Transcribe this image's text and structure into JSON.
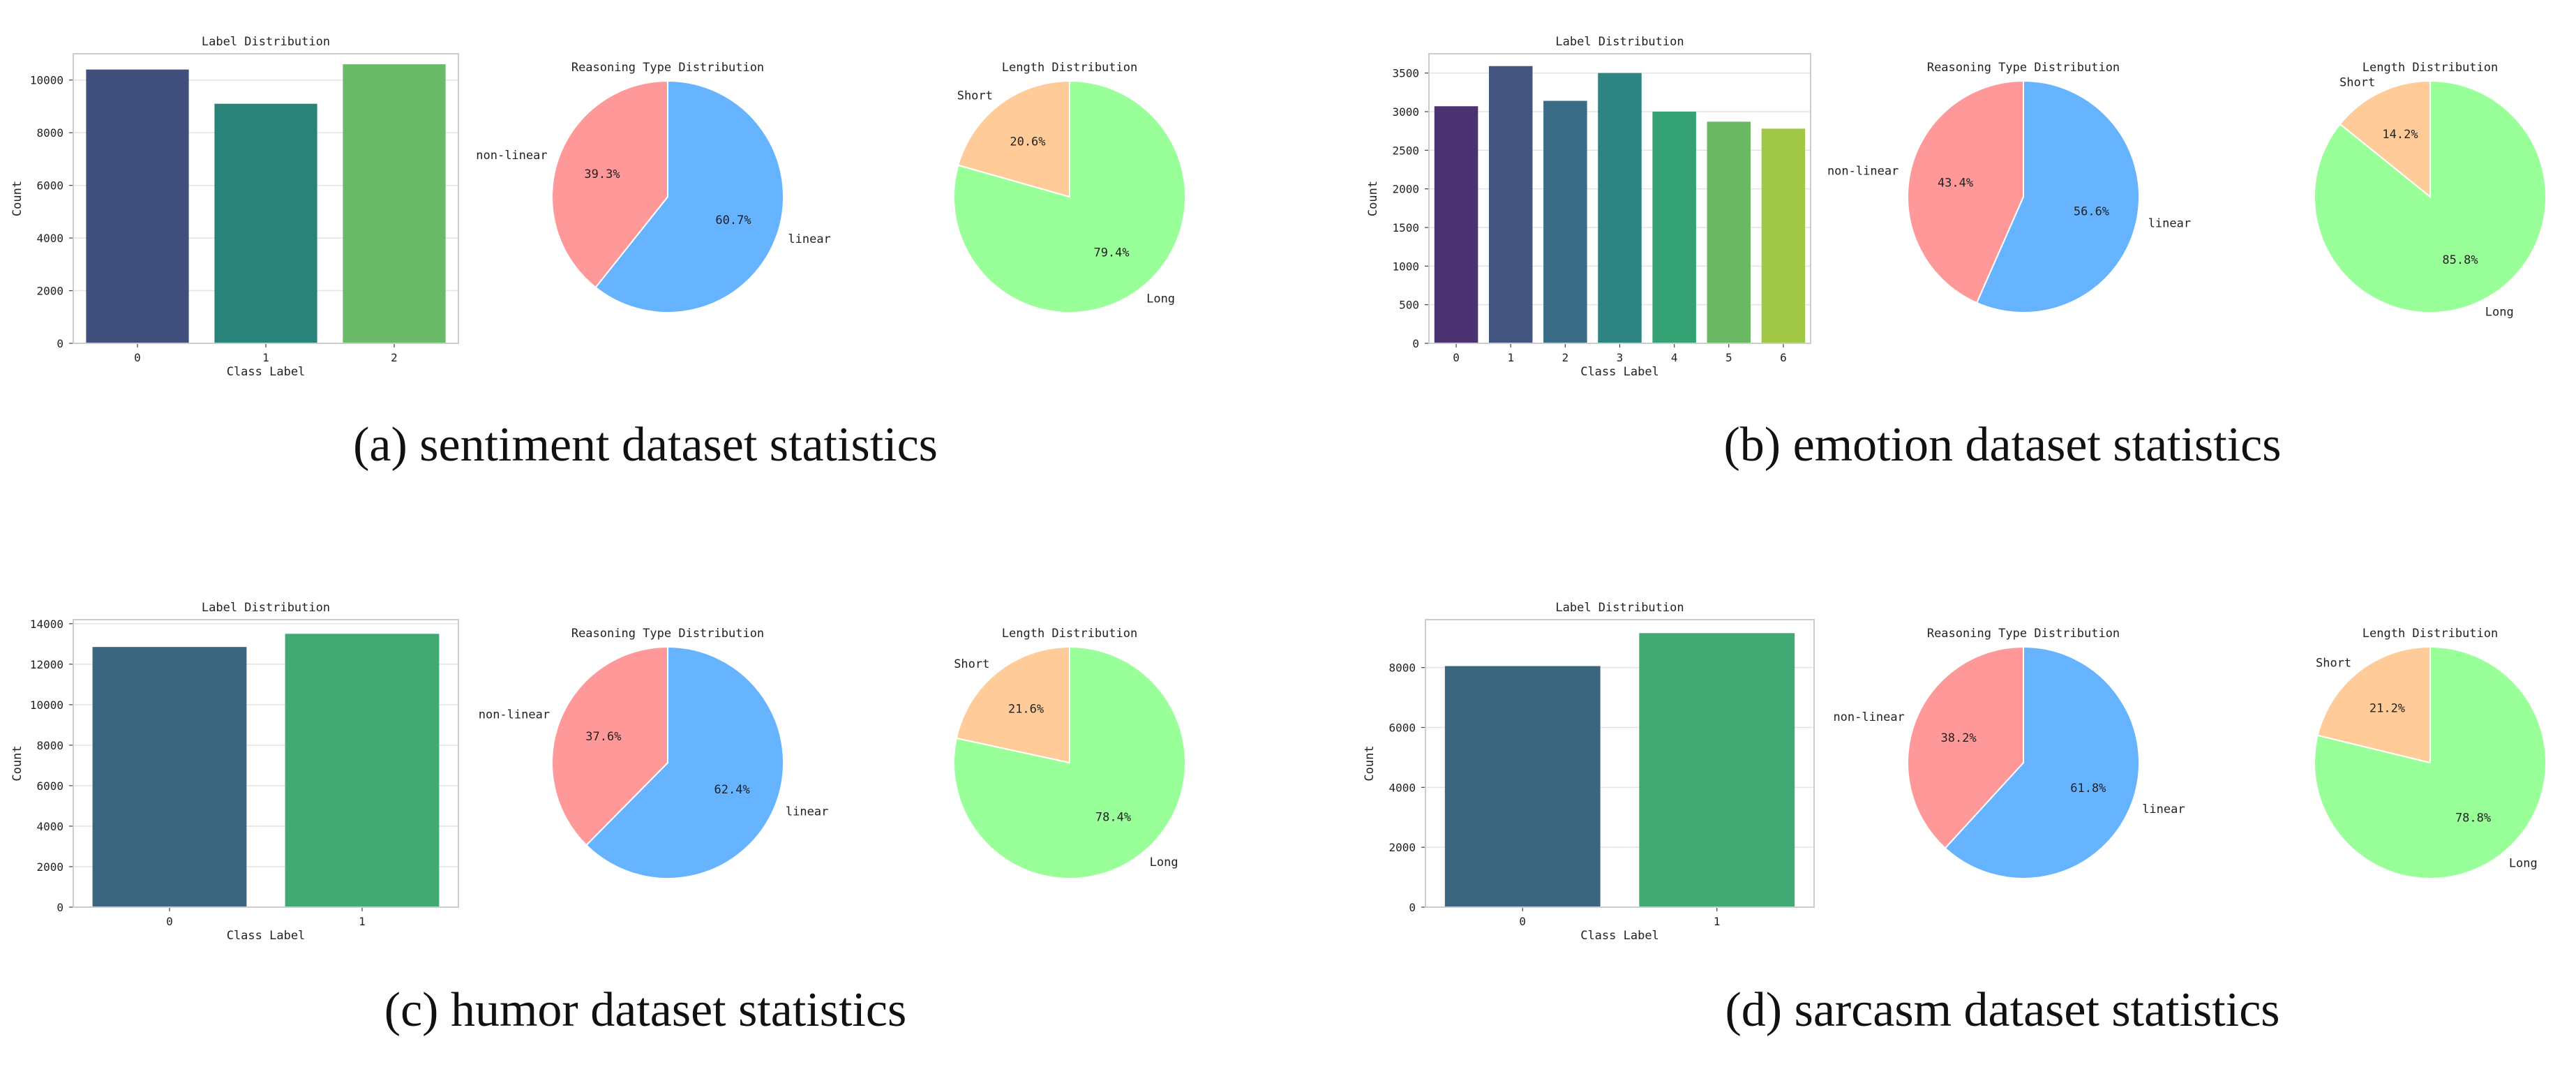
{
  "panels": [
    {
      "caption": "(a) sentiment dataset statistics",
      "bar": {
        "title": "Label Distribution",
        "xlabel": "Class Label",
        "ylabel": "Count",
        "categories": [
          "0",
          "1",
          "2"
        ],
        "values": [
          10400,
          9100,
          10600
        ],
        "ylim": [
          0,
          11000
        ],
        "yticks": [
          0,
          2000,
          4000,
          6000,
          8000,
          10000
        ],
        "colors": [
          "#414f7d",
          "#2a8379",
          "#6aba6a"
        ]
      },
      "reasoning": {
        "title": "Reasoning Type Distribution",
        "slices": [
          {
            "label": "linear",
            "value": 60.7,
            "pct": "60.7%",
            "color": "#66b3ff"
          },
          {
            "label": "non-linear",
            "value": 39.3,
            "pct": "39.3%",
            "color": "#ff9999"
          }
        ]
      },
      "length": {
        "title": "Length Distribution",
        "slices": [
          {
            "label": "Long",
            "value": 79.4,
            "pct": "79.4%",
            "color": "#99ff99"
          },
          {
            "label": "Short",
            "value": 20.6,
            "pct": "20.6%",
            "color": "#ffcc99"
          }
        ]
      }
    },
    {
      "caption": "(b) emotion dataset statistics",
      "bar": {
        "title": "Label Distribution",
        "xlabel": "Class Label",
        "ylabel": "Count",
        "categories": [
          "0",
          "1",
          "2",
          "3",
          "4",
          "5",
          "6"
        ],
        "values": [
          3070,
          3590,
          3140,
          3500,
          3000,
          2870,
          2780
        ],
        "ylim": [
          0,
          3750
        ],
        "yticks": [
          0,
          500,
          1000,
          1500,
          2000,
          2500,
          3000,
          3500
        ],
        "colors": [
          "#4a3370",
          "#43547f",
          "#3a6c88",
          "#2e8481",
          "#35a275",
          "#6ab864",
          "#a1c746"
        ]
      },
      "reasoning": {
        "title": "Reasoning Type Distribution",
        "slices": [
          {
            "label": "linear",
            "value": 56.6,
            "pct": "56.6%",
            "color": "#66b3ff"
          },
          {
            "label": "non-linear",
            "value": 43.4,
            "pct": "43.4%",
            "color": "#ff9999"
          }
        ]
      },
      "length": {
        "title": "Length Distribution",
        "slices": [
          {
            "label": "Long",
            "value": 85.8,
            "pct": "85.8%",
            "color": "#99ff99"
          },
          {
            "label": "Short",
            "value": 14.2,
            "pct": "14.2%",
            "color": "#ffcc99"
          }
        ]
      }
    },
    {
      "caption": "(c) humor dataset statistics",
      "bar": {
        "title": "Label Distribution",
        "xlabel": "Class Label",
        "ylabel": "Count",
        "categories": [
          "0",
          "1"
        ],
        "values": [
          12850,
          13500
        ],
        "ylim": [
          0,
          14200
        ],
        "yticks": [
          0,
          2000,
          4000,
          6000,
          8000,
          10000,
          12000,
          14000
        ],
        "colors": [
          "#3c6580",
          "#42a874"
        ]
      },
      "reasoning": {
        "title": "Reasoning Type Distribution",
        "slices": [
          {
            "label": "linear",
            "value": 62.4,
            "pct": "62.4%",
            "color": "#66b3ff"
          },
          {
            "label": "non-linear",
            "value": 37.6,
            "pct": "37.6%",
            "color": "#ff9999"
          }
        ]
      },
      "length": {
        "title": "Length Distribution",
        "slices": [
          {
            "label": "Long",
            "value": 78.4,
            "pct": "78.4%",
            "color": "#99ff99"
          },
          {
            "label": "Short",
            "value": 21.6,
            "pct": "21.6%",
            "color": "#ffcc99"
          }
        ]
      }
    },
    {
      "caption": "(d) sarcasm dataset statistics",
      "bar": {
        "title": "Label Distribution",
        "xlabel": "Class Label",
        "ylabel": "Count",
        "categories": [
          "0",
          "1"
        ],
        "values": [
          8050,
          9150
        ],
        "ylim": [
          0,
          9600
        ],
        "yticks": [
          0,
          2000,
          4000,
          6000,
          8000
        ],
        "colors": [
          "#3c6580",
          "#42a874"
        ]
      },
      "reasoning": {
        "title": "Reasoning Type Distribution",
        "slices": [
          {
            "label": "linear",
            "value": 61.8,
            "pct": "61.8%",
            "color": "#66b3ff"
          },
          {
            "label": "non-linear",
            "value": 38.2,
            "pct": "38.2%",
            "color": "#ff9999"
          }
        ]
      },
      "length": {
        "title": "Length Distribution",
        "slices": [
          {
            "label": "Long",
            "value": 78.8,
            "pct": "78.8%",
            "color": "#99ff99"
          },
          {
            "label": "Short",
            "value": 21.2,
            "pct": "21.2%",
            "color": "#ffcc99"
          }
        ]
      }
    }
  ],
  "chart_data": [
    {
      "type": "bar",
      "title": "Label Distribution",
      "xlabel": "Class Label",
      "ylabel": "Count",
      "categories": [
        "0",
        "1",
        "2"
      ],
      "values": [
        10400,
        9100,
        10600
      ],
      "ylim": [
        0,
        11000
      ]
    },
    {
      "type": "pie",
      "title": "Reasoning Type Distribution",
      "labels": [
        "linear",
        "non-linear"
      ],
      "values": [
        60.7,
        39.3
      ]
    },
    {
      "type": "pie",
      "title": "Length Distribution",
      "labels": [
        "Long",
        "Short"
      ],
      "values": [
        79.4,
        20.6
      ]
    },
    {
      "type": "bar",
      "title": "Label Distribution",
      "xlabel": "Class Label",
      "ylabel": "Count",
      "categories": [
        "0",
        "1",
        "2",
        "3",
        "4",
        "5",
        "6"
      ],
      "values": [
        3070,
        3590,
        3140,
        3500,
        3000,
        2870,
        2780
      ],
      "ylim": [
        0,
        3750
      ]
    },
    {
      "type": "pie",
      "title": "Reasoning Type Distribution",
      "labels": [
        "linear",
        "non-linear"
      ],
      "values": [
        56.6,
        43.4
      ]
    },
    {
      "type": "pie",
      "title": "Length Distribution",
      "labels": [
        "Long",
        "Short"
      ],
      "values": [
        85.8,
        14.2
      ]
    },
    {
      "type": "bar",
      "title": "Label Distribution",
      "xlabel": "Class Label",
      "ylabel": "Count",
      "categories": [
        "0",
        "1"
      ],
      "values": [
        12850,
        13500
      ],
      "ylim": [
        0,
        14200
      ]
    },
    {
      "type": "pie",
      "title": "Reasoning Type Distribution",
      "labels": [
        "linear",
        "non-linear"
      ],
      "values": [
        62.4,
        37.6
      ]
    },
    {
      "type": "pie",
      "title": "Length Distribution",
      "labels": [
        "Long",
        "Short"
      ],
      "values": [
        78.4,
        21.6
      ]
    },
    {
      "type": "bar",
      "title": "Label Distribution",
      "xlabel": "Class Label",
      "ylabel": "Count",
      "categories": [
        "0",
        "1"
      ],
      "values": [
        8050,
        9150
      ],
      "ylim": [
        0,
        9600
      ]
    },
    {
      "type": "pie",
      "title": "Reasoning Type Distribution",
      "labels": [
        "linear",
        "non-linear"
      ],
      "values": [
        61.8,
        38.2
      ]
    },
    {
      "type": "pie",
      "title": "Length Distribution",
      "labels": [
        "Long",
        "Short"
      ],
      "values": [
        78.8,
        21.2
      ]
    }
  ]
}
